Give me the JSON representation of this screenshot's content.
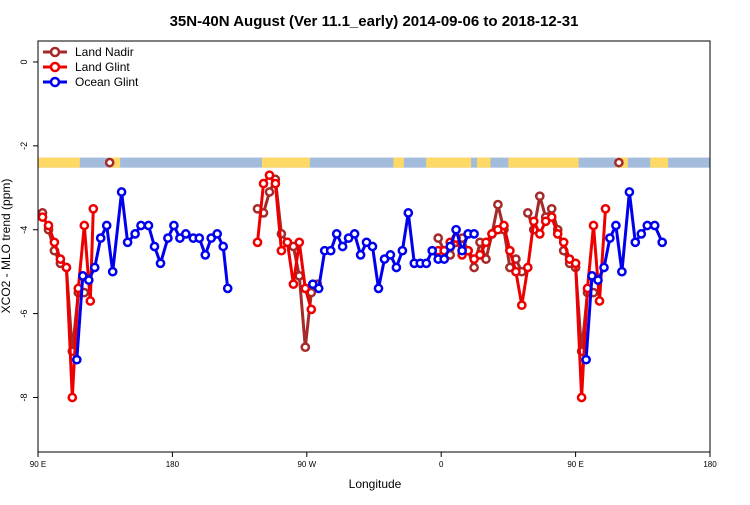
{
  "chart_data": {
    "type": "line",
    "title": "35N-40N August (Ver 11.1_early)   2014-09-06 to 2018-12-31",
    "xlabel": "Longitude",
    "ylabel": "XCO2 - MLO trend (ppm)",
    "xlim": [
      90,
      540
    ],
    "ylim": [
      -9.3,
      0.5
    ],
    "x_ticks": [
      {
        "value": 90,
        "label": "90 E"
      },
      {
        "value": 180,
        "label": "180"
      },
      {
        "value": 270,
        "label": "90 W"
      },
      {
        "value": 360,
        "label": "0"
      },
      {
        "value": 450,
        "label": "90 E"
      },
      {
        "value": 540,
        "label": "180"
      }
    ],
    "y_ticks": [
      {
        "value": 0,
        "label": "0"
      },
      {
        "value": -2,
        "label": "-2"
      },
      {
        "value": -4,
        "label": "-4"
      },
      {
        "value": -6,
        "label": "-6"
      },
      {
        "value": -8,
        "label": "-8"
      }
    ],
    "legend": {
      "placement": "top-left",
      "entries": [
        {
          "name": "Land Nadir",
          "color": "#a52a2a"
        },
        {
          "name": "Land Glint",
          "color": "#ee0000"
        },
        {
          "name": "Ocean Glint",
          "color": "#0000ee"
        }
      ]
    },
    "land_ocean_band": {
      "y_top": -2.28,
      "y_bottom": -2.52,
      "land_color": "#ffd966",
      "ocean_color": "#a3bcdc",
      "land_segments": [
        [
          90,
          118
        ],
        [
          138,
          145
        ],
        [
          240,
          272
        ],
        [
          328,
          335
        ],
        [
          350,
          380
        ],
        [
          384,
          393
        ],
        [
          405,
          452
        ],
        [
          477,
          485
        ],
        [
          500,
          512
        ]
      ]
    },
    "series": [
      {
        "name": "Land Nadir",
        "color": "#a52a2a",
        "segments": [
          [
            [
              93,
              -3.6
            ],
            [
              97,
              -4.0
            ],
            [
              101,
              -4.5
            ],
            [
              105,
              -4.8
            ],
            [
              109,
              -4.9
            ],
            [
              113,
              -6.9
            ],
            [
              117,
              -5.5
            ],
            [
              121,
              -5.5
            ]
          ],
          [
            [
              138,
              -2.4
            ]
          ],
          [
            [
              237,
              -3.5
            ],
            [
              241,
              -3.6
            ],
            [
              245,
              -3.1
            ],
            [
              249,
              -2.8
            ],
            [
              253,
              -4.1
            ],
            [
              257,
              -4.3
            ],
            [
              261,
              -4.4
            ],
            [
              265,
              -5.1
            ],
            [
              269,
              -6.8
            ],
            [
              273,
              -5.5
            ],
            [
              277,
              -5.3
            ]
          ],
          [
            [
              358,
              -4.2
            ],
            [
              362,
              -4.5
            ],
            [
              366,
              -4.6
            ],
            [
              370,
              -4.3
            ],
            [
              374,
              -4.2
            ],
            [
              378,
              -4.5
            ],
            [
              382,
              -4.9
            ],
            [
              386,
              -4.3
            ],
            [
              390,
              -4.7
            ],
            [
              394,
              -4.1
            ],
            [
              398,
              -3.4
            ],
            [
              402,
              -4.0
            ],
            [
              406,
              -4.9
            ],
            [
              410,
              -4.7
            ],
            [
              414,
              -5.0
            ]
          ],
          [
            [
              418,
              -3.6
            ],
            [
              422,
              -4.0
            ],
            [
              426,
              -3.2
            ],
            [
              430,
              -3.7
            ],
            [
              434,
              -3.5
            ],
            [
              438,
              -4.0
            ],
            [
              442,
              -4.5
            ],
            [
              446,
              -4.8
            ],
            [
              450,
              -4.9
            ],
            [
              454,
              -6.9
            ],
            [
              458,
              -5.5
            ],
            [
              462,
              -5.5
            ]
          ],
          [
            [
              479,
              -2.4
            ]
          ]
        ]
      },
      {
        "name": "Land Glint",
        "color": "#ee0000",
        "segments": [
          [
            [
              93,
              -3.7
            ],
            [
              97,
              -3.9
            ],
            [
              101,
              -4.3
            ],
            [
              105,
              -4.7
            ],
            [
              109,
              -4.9
            ],
            [
              113,
              -8.0
            ],
            [
              117,
              -5.4
            ],
            [
              121,
              -3.9
            ],
            [
              125,
              -5.7
            ],
            [
              127,
              -3.5
            ]
          ],
          [
            [
              237,
              -4.3
            ],
            [
              241,
              -2.9
            ],
            [
              245,
              -2.7
            ],
            [
              249,
              -2.9
            ],
            [
              253,
              -4.5
            ],
            [
              257,
              -4.3
            ],
            [
              261,
              -5.3
            ],
            [
              265,
              -4.3
            ],
            [
              269,
              -5.4
            ],
            [
              273,
              -5.9
            ]
          ],
          [
            [
              358,
              -4.5
            ],
            [
              362,
              -4.5
            ],
            [
              366,
              -4.3
            ],
            [
              370,
              -4.2
            ],
            [
              374,
              -4.6
            ],
            [
              378,
              -4.5
            ],
            [
              382,
              -4.7
            ],
            [
              386,
              -4.6
            ],
            [
              390,
              -4.3
            ],
            [
              394,
              -4.1
            ],
            [
              398,
              -4.0
            ],
            [
              402,
              -3.9
            ],
            [
              406,
              -4.5
            ],
            [
              410,
              -5.0
            ],
            [
              414,
              -5.8
            ],
            [
              418,
              -4.9
            ],
            [
              422,
              -3.8
            ],
            [
              426,
              -4.1
            ],
            [
              430,
              -3.8
            ],
            [
              434,
              -3.7
            ],
            [
              438,
              -4.1
            ],
            [
              442,
              -4.3
            ],
            [
              446,
              -4.7
            ],
            [
              450,
              -4.8
            ],
            [
              454,
              -8.0
            ],
            [
              458,
              -5.4
            ],
            [
              462,
              -3.9
            ],
            [
              466,
              -5.7
            ],
            [
              470,
              -3.5
            ]
          ]
        ]
      },
      {
        "name": "Ocean Glint",
        "color": "#0000ee",
        "segments": [
          [
            [
              116,
              -7.1
            ],
            [
              120,
              -5.1
            ],
            [
              124,
              -5.2
            ],
            [
              128,
              -4.9
            ],
            [
              132,
              -4.2
            ],
            [
              136,
              -3.9
            ],
            [
              140,
              -5.0
            ],
            [
              146,
              -3.1
            ],
            [
              150,
              -4.3
            ],
            [
              155,
              -4.1
            ],
            [
              159,
              -3.9
            ],
            [
              164,
              -3.9
            ],
            [
              168,
              -4.4
            ],
            [
              172,
              -4.8
            ],
            [
              177,
              -4.2
            ],
            [
              181,
              -3.9
            ],
            [
              185,
              -4.2
            ],
            [
              189,
              -4.1
            ],
            [
              194,
              -4.2
            ],
            [
              198,
              -4.2
            ],
            [
              202,
              -4.6
            ],
            [
              206,
              -4.2
            ],
            [
              210,
              -4.1
            ],
            [
              214,
              -4.4
            ],
            [
              217,
              -5.4
            ]
          ],
          [
            [
              274,
              -5.3
            ],
            [
              278,
              -5.4
            ],
            [
              282,
              -4.5
            ],
            [
              286,
              -4.5
            ],
            [
              290,
              -4.1
            ],
            [
              294,
              -4.4
            ],
            [
              298,
              -4.2
            ],
            [
              302,
              -4.1
            ],
            [
              306,
              -4.6
            ],
            [
              310,
              -4.3
            ],
            [
              314,
              -4.4
            ],
            [
              318,
              -5.4
            ],
            [
              322,
              -4.7
            ],
            [
              326,
              -4.6
            ],
            [
              330,
              -4.9
            ],
            [
              334,
              -4.5
            ],
            [
              338,
              -3.6
            ],
            [
              342,
              -4.8
            ],
            [
              346,
              -4.8
            ],
            [
              350,
              -4.8
            ],
            [
              354,
              -4.5
            ],
            [
              358,
              -4.7
            ],
            [
              362,
              -4.7
            ],
            [
              366,
              -4.4
            ],
            [
              370,
              -4.0
            ],
            [
              374,
              -4.5
            ],
            [
              378,
              -4.1
            ],
            [
              382,
              -4.1
            ]
          ],
          [
            [
              457,
              -7.1
            ],
            [
              461,
              -5.1
            ],
            [
              465,
              -5.2
            ],
            [
              469,
              -4.9
            ],
            [
              473,
              -4.2
            ],
            [
              477,
              -3.9
            ],
            [
              481,
              -5.0
            ],
            [
              486,
              -3.1
            ],
            [
              490,
              -4.3
            ],
            [
              494,
              -4.1
            ],
            [
              498,
              -3.9
            ],
            [
              503,
              -3.9
            ],
            [
              508,
              -4.3
            ]
          ]
        ]
      }
    ]
  }
}
